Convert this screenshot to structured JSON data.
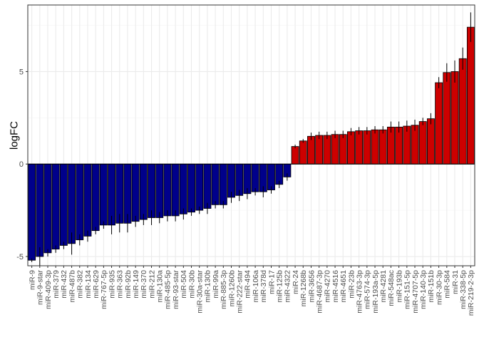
{
  "chart_data": {
    "type": "bar",
    "xlabel": "",
    "ylabel": "logFC",
    "ylim": [
      -5.5,
      8.6
    ],
    "yticks": [
      -5,
      0,
      5
    ],
    "grid": true,
    "legend": "none",
    "colors": {
      "negative": "#00008B",
      "positive": "#CD0000",
      "panel_border": "#333333",
      "grid_major": "#ebebeb",
      "grid_minor": "#f5f5f5"
    },
    "categories": [
      "miR-9",
      "miR-9-star",
      "miR-409-3p",
      "miR-379",
      "miR-432",
      "miR-487b",
      "miR-382",
      "miR-134",
      "miR-629",
      "miR-767-5p",
      "miR-935",
      "miR-363",
      "miR-92b",
      "miR-149",
      "miR-370",
      "miR-212",
      "miR-130a",
      "miR-485-5p",
      "miR-93-star",
      "miR-504",
      "miR-30b",
      "miR-30a-star",
      "miR-130b",
      "miR-99a",
      "miR-885-3p",
      "miR-1260b",
      "miR-222-star",
      "miR-494",
      "miR-106a",
      "miR-378d",
      "miR-17",
      "miR-125b",
      "miR-4322",
      "miR-24",
      "miR-1268b",
      "miR-3656",
      "miR-4687-3p",
      "miR-4270",
      "miR-4516",
      "miR-4651",
      "miR-23b",
      "miR-4763-3p",
      "miR-574-3p",
      "miR-193a-5p",
      "miR-4281",
      "miR-548ac",
      "miR-193b",
      "miR-151-5p",
      "miR-4707-5p",
      "miR-140-3p",
      "miR-151b",
      "miR-30-3p",
      "miR-584",
      "miR-31",
      "miR-338-5p",
      "miR-219-2-3p"
    ],
    "values": [
      -5.2,
      -5.0,
      -4.8,
      -4.6,
      -4.4,
      -4.3,
      -4.1,
      -3.9,
      -3.6,
      -3.3,
      -3.3,
      -3.2,
      -3.2,
      -3.1,
      -3.0,
      -2.9,
      -2.9,
      -2.8,
      -2.8,
      -2.7,
      -2.6,
      -2.5,
      -2.4,
      -2.2,
      -2.2,
      -1.8,
      -1.7,
      -1.6,
      -1.5,
      -1.5,
      -1.4,
      -1.1,
      -0.7,
      0.95,
      1.25,
      1.5,
      1.55,
      1.55,
      1.6,
      1.6,
      1.75,
      1.8,
      1.8,
      1.85,
      1.85,
      2.0,
      2.0,
      2.05,
      2.1,
      2.3,
      2.45,
      4.4,
      4.95,
      5.0,
      5.7,
      7.4
    ],
    "errors": [
      0.1,
      0.5,
      0.2,
      0.2,
      0.2,
      0.6,
      0.3,
      0.3,
      0.2,
      0.2,
      0.5,
      0.5,
      0.5,
      0.3,
      0.3,
      0.4,
      0.3,
      0.3,
      0.3,
      0.3,
      0.2,
      0.2,
      0.3,
      0.2,
      0.2,
      0.3,
      0.3,
      0.3,
      0.2,
      0.3,
      0.2,
      0.2,
      0.2,
      0.1,
      0.1,
      0.2,
      0.2,
      0.2,
      0.2,
      0.2,
      0.2,
      0.2,
      0.2,
      0.2,
      0.2,
      0.3,
      0.3,
      0.3,
      0.3,
      0.2,
      0.3,
      0.3,
      0.5,
      0.6,
      0.6,
      0.8
    ]
  }
}
